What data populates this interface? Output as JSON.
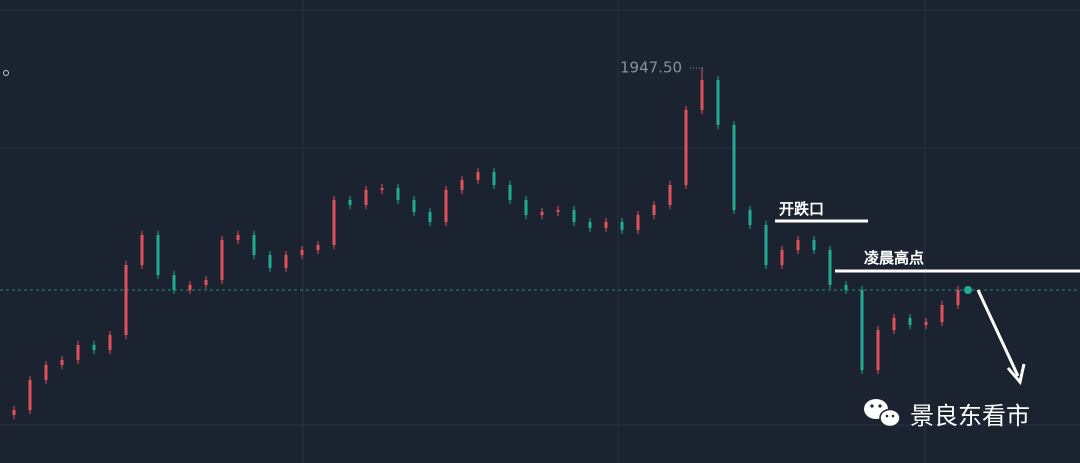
{
  "chart_data": {
    "type": "candlestick",
    "high_label": {
      "value": 1947.5,
      "label": "1947.50"
    },
    "annotations": [
      "开跌口",
      "凌晨高点"
    ],
    "watermark": "景良东看市",
    "up_color": "#e0525c",
    "down_color": "#22ab94",
    "ylim": [
      1908.0,
      1954.3
    ],
    "open": [
      1912.8,
      1913.3,
      1916.3,
      1917.8,
      1918.3,
      1919.8,
      1919.3,
      1920.8,
      1927.8,
      1930.8,
      1926.8,
      1925.3,
      1925.8,
      1926.3,
      1930.3,
      1930.8,
      1928.8,
      1927.5,
      1928.8,
      1929.3,
      1929.8,
      1934.3,
      1933.8,
      1935.3,
      1935.5,
      1934.3,
      1933.1,
      1932.1,
      1935.3,
      1936.3,
      1937.1,
      1935.8,
      1934.3,
      1932.8,
      1933.1,
      1933.3,
      1932.1,
      1931.5,
      1932.1,
      1931.3,
      1932.8,
      1933.8,
      1935.8,
      1943.3,
      1946.3,
      1941.8,
      1933.3,
      1931.8,
      1927.8,
      1929.3,
      1930.3,
      1929.3,
      1925.8,
      1925.3,
      1917.3,
      1921.3,
      1922.5,
      1921.8,
      1922.1,
      1923.8
    ],
    "close": [
      1913.3,
      1916.3,
      1917.8,
      1918.3,
      1919.8,
      1919.3,
      1920.8,
      1927.8,
      1930.8,
      1926.8,
      1925.3,
      1925.8,
      1926.3,
      1930.3,
      1930.8,
      1928.8,
      1927.5,
      1928.8,
      1929.3,
      1929.8,
      1934.3,
      1933.8,
      1935.3,
      1935.5,
      1934.3,
      1933.1,
      1932.1,
      1935.3,
      1936.3,
      1937.1,
      1935.8,
      1934.3,
      1932.8,
      1933.1,
      1933.3,
      1932.1,
      1931.5,
      1932.1,
      1931.3,
      1932.8,
      1933.8,
      1935.8,
      1943.3,
      1946.3,
      1941.8,
      1933.3,
      1931.8,
      1927.8,
      1929.3,
      1930.3,
      1929.3,
      1925.8,
      1925.3,
      1917.3,
      1921.3,
      1922.5,
      1921.8,
      1922.1,
      1923.8,
      1925.3
    ],
    "high": [
      1913.7,
      1916.7,
      1918.2,
      1918.7,
      1920.2,
      1920.2,
      1921.2,
      1928.2,
      1931.2,
      1931.2,
      1927.2,
      1926.2,
      1926.7,
      1930.7,
      1931.2,
      1931.2,
      1929.2,
      1929.2,
      1929.7,
      1930.2,
      1934.7,
      1934.7,
      1935.7,
      1935.9,
      1935.9,
      1934.7,
      1933.5,
      1935.7,
      1936.7,
      1937.5,
      1937.5,
      1936.2,
      1934.7,
      1933.5,
      1933.7,
      1933.7,
      1932.5,
      1932.5,
      1932.5,
      1933.2,
      1934.2,
      1936.2,
      1943.7,
      1947.5,
      1946.7,
      1942.2,
      1933.7,
      1932.2,
      1929.7,
      1930.7,
      1930.7,
      1929.7,
      1926.2,
      1925.7,
      1921.7,
      1922.9,
      1922.9,
      1922.5,
      1924.2,
      1925.7
    ],
    "low": [
      1912.4,
      1912.9,
      1915.9,
      1917.4,
      1917.9,
      1918.9,
      1918.9,
      1920.4,
      1927.4,
      1926.4,
      1924.9,
      1924.9,
      1925.4,
      1925.9,
      1929.9,
      1928.4,
      1927.1,
      1927.1,
      1928.4,
      1928.9,
      1929.4,
      1933.4,
      1933.4,
      1934.9,
      1933.9,
      1932.7,
      1931.7,
      1931.7,
      1934.9,
      1935.9,
      1935.4,
      1933.9,
      1932.4,
      1932.4,
      1932.7,
      1931.7,
      1931.1,
      1931.1,
      1930.9,
      1930.9,
      1932.4,
      1933.4,
      1935.4,
      1942.9,
      1941.4,
      1932.9,
      1931.4,
      1927.4,
      1927.4,
      1928.9,
      1928.9,
      1925.4,
      1924.9,
      1916.9,
      1916.9,
      1920.9,
      1921.4,
      1921.4,
      1921.7,
      1923.4
    ]
  }
}
